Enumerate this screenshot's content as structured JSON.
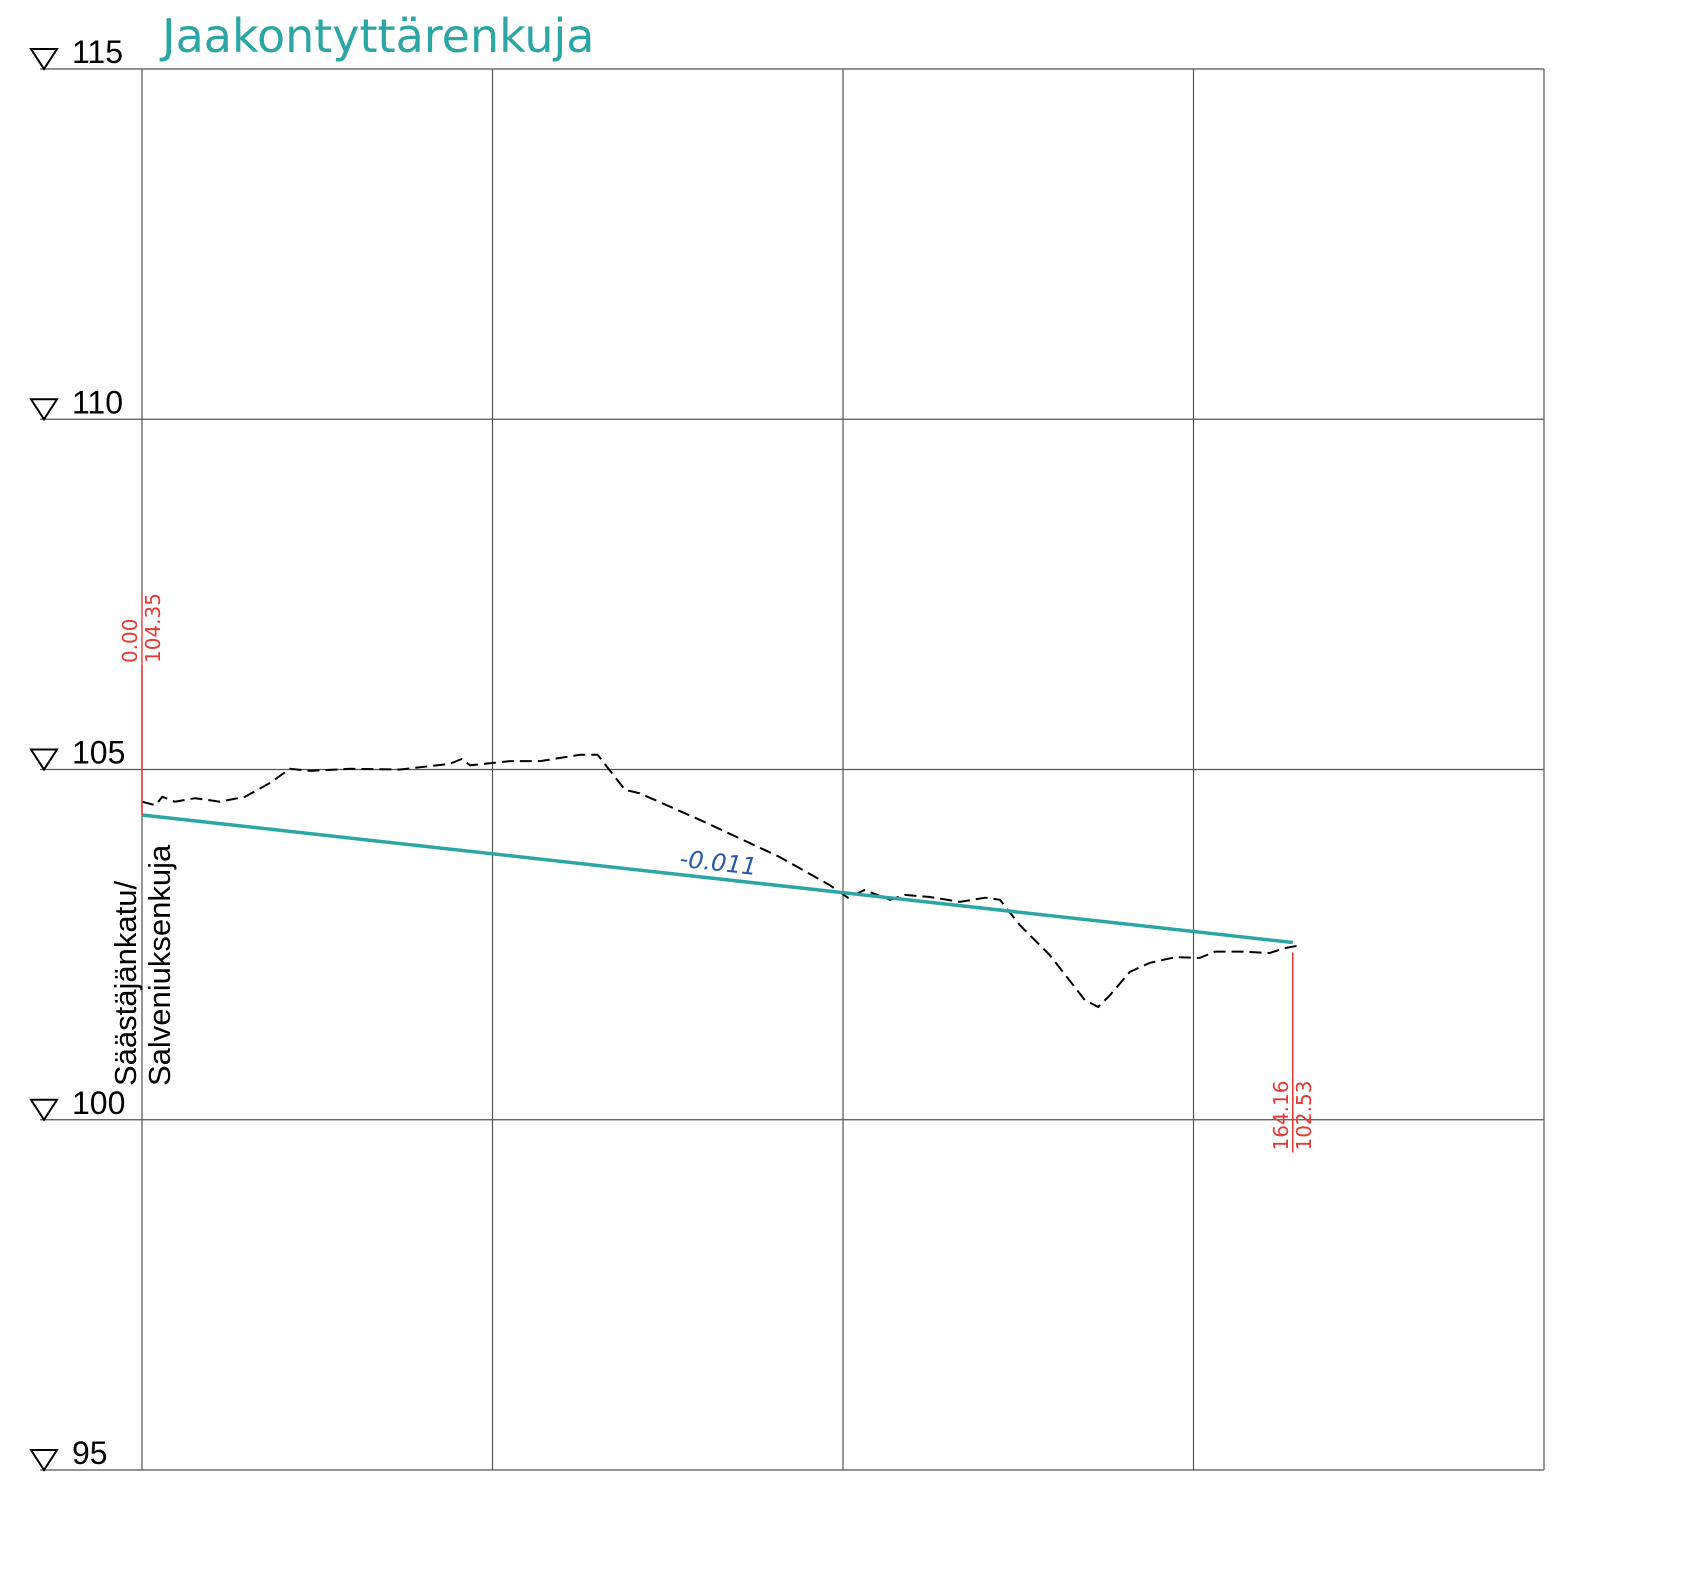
{
  "chart_data": {
    "type": "line",
    "title": "Jaakontyttärenkuja",
    "ylim": [
      95,
      115
    ],
    "yticks": [
      95,
      100,
      105,
      110,
      115
    ],
    "xlim": [
      0,
      200
    ],
    "xticks": [
      0,
      50,
      100,
      150,
      200
    ],
    "grid": true,
    "series": [
      {
        "color": "#000000",
        "dashed": true,
        "x": [
          0,
          1.9,
          2.9,
          4.7,
          7.6,
          11.1,
          14.7,
          18.3,
          21.1,
          24.0,
          29.7,
          36.8,
          43.9,
          45.6,
          46.8,
          52.5,
          56.8,
          62.5,
          65.0,
          68.9,
          71.0,
          79.6,
          91.0,
          98.1,
          100.7,
          103.1,
          106.7,
          108.8,
          112.4,
          116.7,
          120.3,
          122.4,
          125.2,
          129.5,
          134.5,
          136.4,
          138.1,
          140.9,
          143.8,
          147.4,
          150.9,
          153.1,
          156.6,
          160.9,
          163.0,
          165.2
        ],
        "values": [
          104.54,
          104.49,
          104.61,
          104.54,
          104.59,
          104.54,
          104.61,
          104.81,
          105.01,
          104.98,
          105.01,
          105.0,
          105.08,
          105.15,
          105.06,
          105.12,
          105.12,
          105.21,
          105.21,
          104.71,
          104.66,
          104.28,
          103.75,
          103.35,
          103.17,
          103.28,
          103.14,
          103.21,
          103.18,
          103.11,
          103.17,
          103.14,
          102.78,
          102.35,
          101.71,
          101.61,
          101.78,
          102.11,
          102.24,
          102.32,
          102.31,
          102.4,
          102.4,
          102.38,
          102.45,
          102.49
        ]
      },
      {
        "color": "#2ca5a5",
        "dashed": false,
        "x": [
          0,
          164.16
        ],
        "x_labels": [
          "0.00",
          "164.16"
        ],
        "values": [
          104.35,
          102.53
        ],
        "label_color": "#e53935",
        "slope": -0.011,
        "slope_color": "#2b5aa8"
      }
    ],
    "road_labels": [
      "Säästäjänkatu/",
      "Salveniuksenkuja"
    ]
  }
}
